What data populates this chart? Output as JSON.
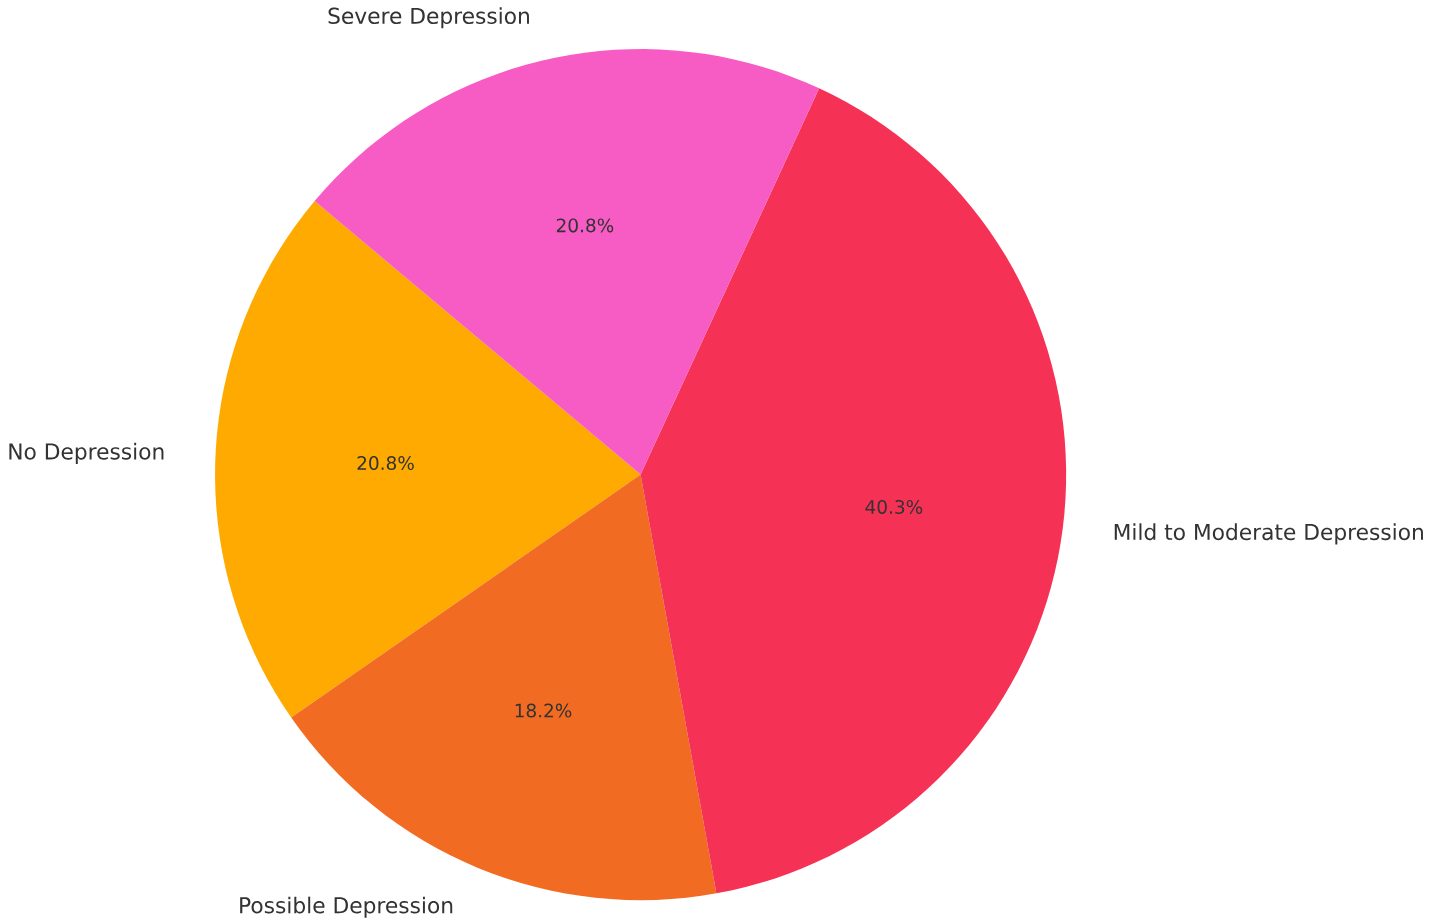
{
  "chart_data": {
    "type": "pie",
    "categories": [
      "No Depression",
      "Possible Depression",
      "Mild to Moderate Depression",
      "Severe Depression"
    ],
    "values": [
      20.8,
      18.2,
      40.3,
      20.8
    ],
    "value_labels": [
      "20.8%",
      "18.2%",
      "40.3%",
      "20.8%"
    ],
    "colors": [
      "#ffaa00",
      "#f26b22",
      "#f53155",
      "#f75bc4"
    ]
  }
}
